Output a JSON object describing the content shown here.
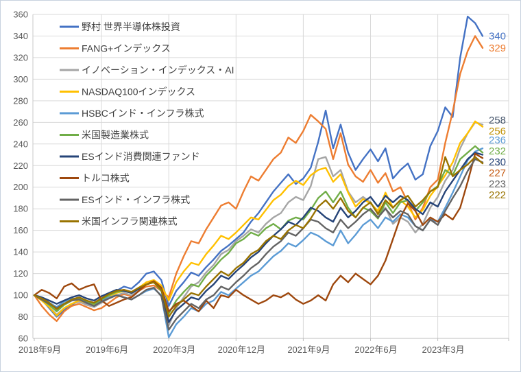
{
  "chart_data": {
    "type": "line",
    "title": "",
    "grid": true,
    "legend_position": "top-left-overlay",
    "axis_text_color": "#595959",
    "gridline_color": "#D9D9D9",
    "axis_line_color": "#BFBFBF",
    "y_axis": {
      "min": 60,
      "max": 360,
      "step": 20,
      "ticks": [
        60,
        80,
        100,
        120,
        140,
        160,
        180,
        200,
        220,
        240,
        260,
        280,
        300,
        320,
        340,
        360
      ]
    },
    "x_axis": {
      "tick_labels": [
        "2018年9月",
        "2019年6月",
        "2020年3月",
        "2020年12月",
        "2021年9月",
        "2022年6月",
        "2023年3月"
      ],
      "tick_month_indices": [
        0,
        9,
        18,
        27,
        36,
        45,
        54
      ],
      "months_total": 61
    },
    "series": [
      {
        "name": "野村 世界半導体株投資",
        "color": "#4472C4",
        "end_label": "340",
        "label_color": "#4472C4",
        "values": [
          100,
          96,
          88,
          80,
          86,
          91,
          95,
          92,
          90,
          95,
          99,
          104,
          108,
          106,
          112,
          120,
          122,
          114,
          90,
          104,
          112,
          121,
          118,
          126,
          133,
          141,
          146,
          152,
          158,
          168,
          176,
          186,
          196,
          204,
          212,
          203,
          208,
          218,
          242,
          271,
          236,
          258,
          232,
          216,
          226,
          235,
          224,
          236,
          208,
          216,
          222,
          207,
          212,
          238,
          252,
          274,
          265,
          320,
          358,
          352,
          340
        ]
      },
      {
        "name": "FANG+インデックス",
        "color": "#ED7D31",
        "end_label": "329",
        "label_color": "#ED7D31",
        "values": [
          100,
          90,
          82,
          76,
          85,
          90,
          92,
          89,
          86,
          88,
          93,
          98,
          101,
          99,
          104,
          108,
          109,
          104,
          98,
          120,
          136,
          150,
          148,
          161,
          172,
          183,
          186,
          180,
          196,
          210,
          206,
          216,
          226,
          232,
          246,
          241,
          252,
          267,
          261,
          254,
          226,
          250,
          221,
          210,
          205,
          216,
          204,
          213,
          196,
          200,
          186,
          170,
          181,
          200,
          207,
          241,
          270,
          305,
          326,
          340,
          329
        ]
      },
      {
        "name": "イノベーション・インデックス・AI",
        "color": "#A5A5A5",
        "end_label": "258",
        "label_color": "#44546A",
        "values": [
          100,
          95,
          89,
          82,
          88,
          92,
          94,
          91,
          89,
          93,
          97,
          100,
          102,
          100,
          105,
          110,
          112,
          107,
          72,
          88,
          98,
          108,
          112,
          121,
          128,
          138,
          142,
          150,
          155,
          161,
          158,
          166,
          172,
          176,
          186,
          191,
          188,
          201,
          226,
          228,
          210,
          216,
          196,
          186,
          191,
          186,
          176,
          181,
          166,
          172,
          168,
          158,
          166,
          181,
          191,
          206,
          216,
          236,
          250,
          260,
          258
        ]
      },
      {
        "name": "NASDAQ100インデックス",
        "color": "#FFC000",
        "end_label": "256",
        "label_color": "#BF9000",
        "values": [
          100,
          95,
          89,
          81,
          88,
          92,
          95,
          93,
          91,
          95,
          99,
          102,
          104,
          102,
          107,
          112,
          114,
          109,
          95,
          112,
          122,
          130,
          128,
          138,
          146,
          155,
          152,
          158,
          165,
          172,
          170,
          179,
          188,
          193,
          201,
          206,
          202,
          211,
          216,
          218,
          205,
          212,
          195,
          182,
          189,
          185,
          178,
          195,
          181,
          188,
          182,
          172,
          179,
          192,
          201,
          211,
          223,
          241,
          250,
          261,
          256
        ]
      },
      {
        "name": "HSBCインド・インフラ株式",
        "color": "#5B9BD5",
        "end_label": "236",
        "label_color": "#5B9BD5",
        "values": [
          100,
          97,
          93,
          89,
          94,
          97,
          96,
          93,
          90,
          95,
          98,
          100,
          98,
          96,
          100,
          104,
          106,
          100,
          61,
          73,
          80,
          88,
          85,
          92,
          95,
          103,
          100,
          106,
          112,
          118,
          122,
          129,
          136,
          141,
          148,
          145,
          151,
          158,
          155,
          150,
          146,
          160,
          148,
          156,
          165,
          170,
          162,
          172,
          168,
          175,
          172,
          164,
          160,
          170,
          168,
          181,
          195,
          210,
          225,
          233,
          236
        ]
      },
      {
        "name": "米国製造業株式",
        "color": "#70AD47",
        "end_label": "232",
        "label_color": "#70AD47",
        "values": [
          100,
          96,
          91,
          85,
          91,
          95,
          97,
          94,
          92,
          96,
          100,
          103,
          104,
          102,
          106,
          110,
          112,
          104,
          83,
          95,
          103,
          110,
          108,
          118,
          125,
          133,
          139,
          148,
          152,
          158,
          155,
          162,
          166,
          161,
          169,
          172,
          170,
          179,
          190,
          196,
          186,
          196,
          181,
          172,
          181,
          178,
          171,
          186,
          176,
          186,
          188,
          178,
          186,
          196,
          201,
          216,
          211,
          226,
          232,
          238,
          232
        ]
      },
      {
        "name": "ESインド消費関連ファンド",
        "color": "#264478",
        "end_label": "230",
        "label_color": "#264478",
        "values": [
          100,
          98,
          95,
          92,
          95,
          98,
          100,
          97,
          95,
          99,
          102,
          105,
          104,
          102,
          106,
          110,
          112,
          105,
          75,
          86,
          92,
          98,
          96,
          104,
          110,
          118,
          115,
          122,
          128,
          135,
          140,
          148,
          155,
          161,
          168,
          165,
          172,
          181,
          178,
          172,
          168,
          181,
          172,
          178,
          186,
          191,
          182,
          192,
          186,
          192,
          188,
          180,
          175,
          186,
          182,
          196,
          206,
          216,
          226,
          232,
          230
        ]
      },
      {
        "name": "トルコ株式",
        "color": "#9E480E",
        "end_label": "227",
        "label_color": "#C55A11",
        "values": [
          100,
          105,
          102,
          97,
          108,
          111,
          105,
          108,
          110,
          95,
          90,
          93,
          96,
          98,
          104,
          110,
          113,
          107,
          85,
          92,
          95,
          90,
          85,
          95,
          88,
          100,
          98,
          105,
          100,
          96,
          92,
          95,
          100,
          98,
          102,
          96,
          92,
          95,
          100,
          95,
          110,
          118,
          112,
          120,
          115,
          110,
          118,
          132,
          152,
          172,
          185,
          178,
          165,
          172,
          168,
          175,
          170,
          181,
          205,
          231,
          227
        ]
      },
      {
        "name": "ESインド・インフラ株式",
        "color": "#636363",
        "end_label": "223",
        "label_color": "#636363",
        "values": [
          100,
          96,
          92,
          88,
          92,
          95,
          96,
          93,
          90,
          94,
          97,
          100,
          98,
          96,
          100,
          105,
          107,
          99,
          68,
          78,
          85,
          92,
          88,
          96,
          100,
          108,
          105,
          112,
          118,
          125,
          130,
          138,
          145,
          150,
          158,
          155,
          162,
          170,
          168,
          162,
          158,
          170,
          162,
          168,
          175,
          180,
          172,
          180,
          172,
          178,
          175,
          164,
          160,
          170,
          165,
          178,
          190,
          201,
          215,
          226,
          223
        ]
      },
      {
        "name": "米国インフラ関連株式",
        "color": "#997300",
        "end_label": "222",
        "label_color": "#997300",
        "values": [
          100,
          97,
          93,
          87,
          92,
          96,
          98,
          95,
          93,
          97,
          101,
          104,
          105,
          103,
          107,
          110,
          112,
          105,
          80,
          90,
          96,
          102,
          100,
          108,
          115,
          122,
          118,
          125,
          130,
          138,
          142,
          150,
          155,
          152,
          160,
          165,
          162,
          171,
          182,
          188,
          180,
          190,
          178,
          172,
          181,
          186,
          175,
          188,
          181,
          188,
          192,
          182,
          188,
          196,
          200,
          228,
          210,
          216,
          221,
          228,
          222
        ]
      }
    ]
  }
}
